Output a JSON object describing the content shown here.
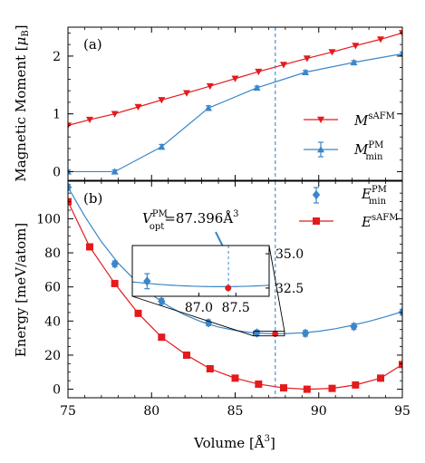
{
  "chart_data": [
    {
      "panel_label": "(a)",
      "type": "line",
      "xlabel": "Volume [Å",
      "xlabel_exp": "3",
      "xlabel_close": "]",
      "ylabel": "Magnetic Moment [",
      "ylabel_unit": "μ",
      "ylabel_unit_sub": "B",
      "ylabel_close": "]",
      "xlim": [
        75,
        95
      ],
      "ylim": [
        -0.15,
        2.5
      ],
      "yticks": [
        "0",
        "1",
        "2"
      ],
      "ytick_values": [
        0,
        1,
        2
      ],
      "legend_position": "lower-right",
      "series": [
        {
          "name": "M",
          "name_sup": "sAFM",
          "name_sub": "",
          "marker": "triangle-down",
          "color": "#e41a1c",
          "x": [
            75.0,
            76.3,
            77.8,
            79.2,
            80.6,
            82.1,
            83.5,
            85.0,
            86.4,
            87.9,
            89.3,
            90.8,
            92.2,
            93.7,
            95.0
          ],
          "y": [
            0.8,
            0.9,
            1.0,
            1.12,
            1.24,
            1.36,
            1.48,
            1.61,
            1.73,
            1.85,
            1.96,
            2.07,
            2.18,
            2.29,
            2.4
          ]
        },
        {
          "name": "M",
          "name_sup": "PM",
          "name_sub": "min",
          "marker": "triangle-up",
          "color": "#3a86c8",
          "x": [
            75.0,
            77.8,
            80.6,
            83.4,
            86.3,
            89.2,
            92.1,
            95.0
          ],
          "y": [
            0.0,
            0.0,
            0.43,
            1.1,
            1.45,
            1.72,
            1.89,
            2.04
          ],
          "yerr": [
            0.03,
            0.03,
            0.04,
            0.04,
            0.03,
            0.03,
            0.03,
            0.03
          ]
        }
      ]
    },
    {
      "panel_label": "(b)",
      "type": "scatter",
      "ylabel": "Energy [meV/atom]",
      "xlim": [
        75,
        95
      ],
      "ylim": [
        -5,
        122
      ],
      "xticks": [
        "75",
        "80",
        "85",
        "90",
        "95"
      ],
      "xtick_values": [
        75,
        80,
        85,
        90,
        95
      ],
      "yticks": [
        "0",
        "20",
        "40",
        "60",
        "80",
        "100"
      ],
      "ytick_values": [
        0,
        20,
        40,
        60,
        80,
        100
      ],
      "legend_position": "upper-right",
      "series": [
        {
          "name": "E",
          "name_sup": "PM",
          "name_sub": "min",
          "marker": "diamond",
          "color": "#3a86c8",
          "x": [
            75.0,
            77.8,
            80.6,
            83.4,
            86.3,
            89.2,
            92.1,
            95.0
          ],
          "y": [
            118.5,
            73.5,
            51.5,
            39.0,
            33.0,
            32.8,
            36.8,
            45.2
          ],
          "yerr": [
            0.6,
            0.6,
            0.6,
            0.6,
            0.6,
            0.6,
            0.6,
            0.6
          ]
        },
        {
          "name": "E",
          "name_sup": "sAFM",
          "name_sub": "",
          "marker": "square",
          "color": "#e41a1c",
          "x": [
            75.0,
            76.3,
            77.8,
            79.2,
            80.6,
            82.1,
            83.5,
            85.0,
            86.4,
            87.9,
            89.3,
            90.8,
            92.2,
            93.7,
            95.0
          ],
          "y": [
            110.0,
            83.5,
            62.0,
            44.5,
            30.5,
            20.0,
            12.0,
            6.5,
            3.0,
            0.8,
            0.0,
            0.5,
            2.5,
            6.5,
            14.5
          ]
        }
      ],
      "fit_curve": {
        "color": "#3a86c8",
        "x": [
          75.0,
          76.0,
          77.0,
          78.0,
          79.0,
          80.0,
          81.0,
          82.0,
          83.0,
          84.0,
          85.0,
          86.0,
          87.0,
          88.0,
          89.0,
          90.0,
          91.0,
          92.0,
          93.0,
          94.0,
          95.0
        ],
        "y": [
          118.5,
          101.5,
          86.5,
          74.0,
          64.0,
          55.5,
          48.8,
          43.5,
          39.5,
          36.5,
          34.5,
          33.2,
          32.6,
          32.6,
          33.1,
          34.0,
          35.5,
          37.5,
          39.8,
          42.5,
          45.5
        ]
      },
      "opt_point": {
        "x": 87.396,
        "y": 32.5,
        "color": "#e41a1c"
      },
      "vline_x": 87.4,
      "annotation": {
        "prefix": "V",
        "sup": "PM",
        "sub": "opt",
        "value": "=87.396Å",
        "value_exp": "3"
      },
      "inset": {
        "xlim": [
          86.1,
          87.95
        ],
        "ylim": [
          31.9,
          35.6
        ],
        "xticks": [
          "87.0",
          "87.5"
        ],
        "xtick_values": [
          87.0,
          87.5
        ],
        "yticks": [
          "35.0",
          "32.5"
        ],
        "ytick_values": [
          35.0,
          32.5
        ],
        "points": [
          {
            "x": 86.3,
            "y": 33.0,
            "yerr": 0.55,
            "marker": "diamond",
            "color": "#3a86c8"
          },
          {
            "x": 87.396,
            "y": 32.5,
            "yerr": 0,
            "marker": "circle",
            "color": "#e41a1c"
          }
        ]
      },
      "zoom_box": {
        "x0": 86.1,
        "x1": 87.95,
        "y0": 31.3,
        "y1": 34.0
      }
    }
  ]
}
